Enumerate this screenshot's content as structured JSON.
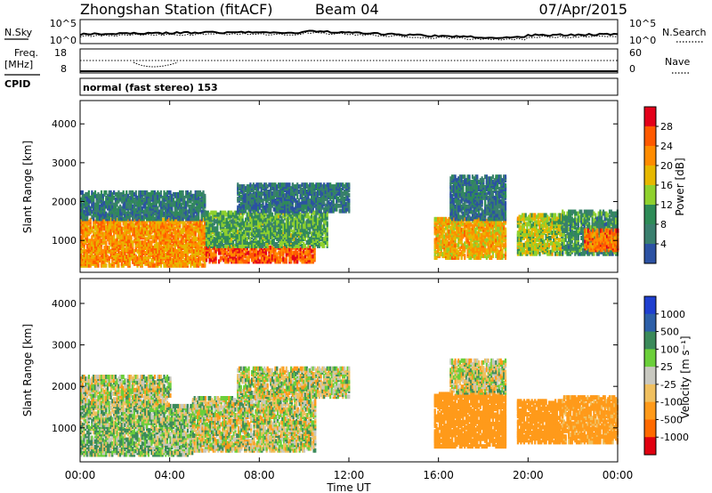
{
  "header": {
    "station": "Zhongshan Station (fitACF)",
    "beam": "Beam 04",
    "date": "07/Apr/2015"
  },
  "nsky_panel": {
    "left_label": "N.Sky",
    "left_ticks": [
      "10^5",
      "10^0"
    ],
    "right_label": "N.Search",
    "right_ticks": [
      "10^5",
      "10^0"
    ]
  },
  "freq_panel": {
    "left_label_1": "Freq.",
    "left_label_2": "[MHz]",
    "left_ticks": [
      "18",
      "8"
    ],
    "right_label": "Nave",
    "right_ticks": [
      "60",
      "0"
    ]
  },
  "cpid": {
    "label": "CPID",
    "value": "normal (fast stereo) 153"
  },
  "power_colorbar": {
    "label": "Power [dB]",
    "ticks": [
      "28",
      "24",
      "20",
      "16",
      "12",
      "8",
      "4"
    ],
    "colors": [
      "#e3001a",
      "#ff5a00",
      "#ff8c00",
      "#e6b800",
      "#8fd12e",
      "#2e8b57",
      "#3a7f6e",
      "#2c52a3",
      "#1a1aff"
    ]
  },
  "velocity_colorbar": {
    "label": "Velocity [m s⁻¹]",
    "ticks": [
      "1000",
      "500",
      "100",
      "25",
      "-25",
      "-100",
      "-500",
      "-1000"
    ],
    "colors": [
      "#1f3fcf",
      "#2d5fa8",
      "#3b8a5a",
      "#6bcf3a",
      "#c8c8c0",
      "#f0c060",
      "#ff9a1a",
      "#ff6a00",
      "#e00010"
    ]
  },
  "chart_data": {
    "type": "heatmap",
    "xlabel": "Time UT",
    "ylabel": "Slant Range [km]",
    "x_ticks": [
      "00:00",
      "04:00",
      "08:00",
      "12:00",
      "16:00",
      "20:00",
      "00:00"
    ],
    "y_ticks": [
      "1000",
      "2000",
      "3000",
      "4000"
    ],
    "ylim": [
      180,
      4600
    ],
    "xlim_hours": [
      0,
      24
    ],
    "power_regions": [
      {
        "t0": 0.0,
        "t1": 5.6,
        "r0": 300,
        "r1": 1500,
        "db": 22
      },
      {
        "t0": 0.0,
        "t1": 5.6,
        "r0": 1500,
        "r1": 2200,
        "db": 8
      },
      {
        "t0": 5.6,
        "t1": 10.5,
        "r0": 400,
        "r1": 800,
        "db": 26
      },
      {
        "t0": 5.6,
        "t1": 11.0,
        "r0": 800,
        "r1": 1700,
        "db": 12
      },
      {
        "t0": 7.0,
        "t1": 12.0,
        "r0": 1700,
        "r1": 2400,
        "db": 7
      },
      {
        "t0": 15.8,
        "t1": 19.0,
        "r0": 500,
        "r1": 1500,
        "db": 20
      },
      {
        "t0": 16.5,
        "t1": 19.0,
        "r0": 1500,
        "r1": 2600,
        "db": 7
      },
      {
        "t0": 19.5,
        "t1": 21.5,
        "r0": 600,
        "r1": 1600,
        "db": 16
      },
      {
        "t0": 21.5,
        "t1": 24.0,
        "r0": 600,
        "r1": 1700,
        "db": 10
      },
      {
        "t0": 22.5,
        "t1": 24.0,
        "r0": 700,
        "r1": 1200,
        "db": 24
      }
    ],
    "velocity_regions": [
      {
        "t0": 0.0,
        "t1": 5.0,
        "r0": 300,
        "r1": 1500,
        "v": 60
      },
      {
        "t0": 0.0,
        "t1": 4.0,
        "r0": 1500,
        "r1": 2200,
        "v": 0
      },
      {
        "t0": 5.0,
        "t1": 10.5,
        "r0": 400,
        "r1": 1700,
        "v": 0
      },
      {
        "t0": 7.0,
        "t1": 12.0,
        "r0": 1700,
        "r1": 2400,
        "v": 0
      },
      {
        "t0": 15.8,
        "t1": 19.0,
        "r0": 500,
        "r1": 1800,
        "v": -300
      },
      {
        "t0": 16.5,
        "t1": 19.0,
        "r0": 1800,
        "r1": 2600,
        "v": 0
      },
      {
        "t0": 19.5,
        "t1": 21.5,
        "r0": 600,
        "r1": 1600,
        "v": -300
      },
      {
        "t0": 21.5,
        "t1": 24.0,
        "r0": 600,
        "r1": 1700,
        "v": -200
      }
    ]
  }
}
